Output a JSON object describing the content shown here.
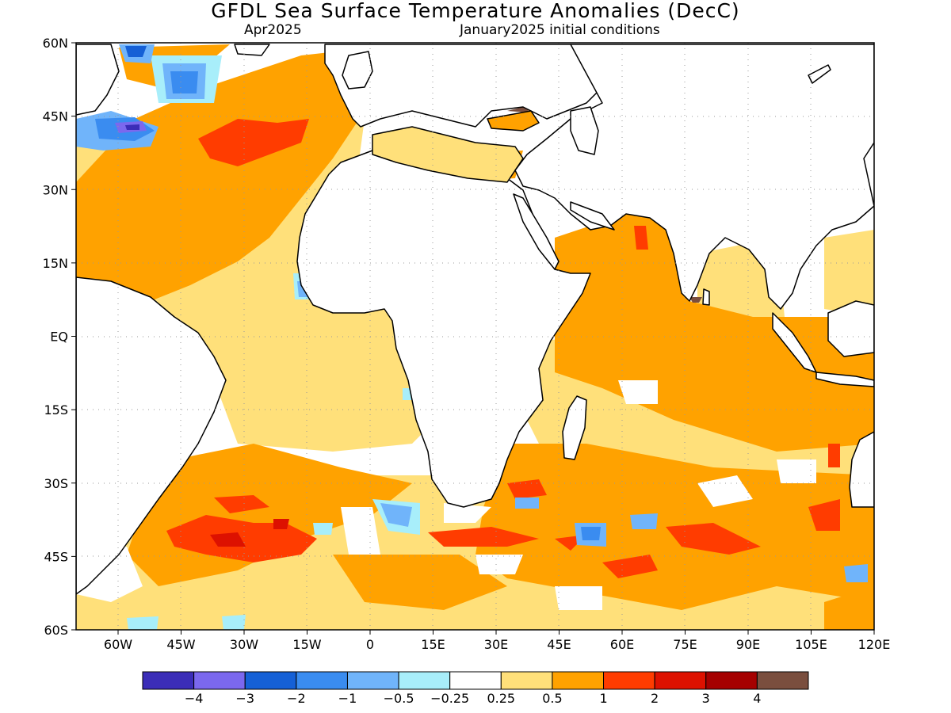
{
  "title": "GFDL Sea Surface Temperature Anomalies (DecC)",
  "subtitle_left": "Apr2025",
  "subtitle_right": "January2025 initial conditions",
  "map": {
    "lon_range": [
      -70,
      120
    ],
    "lat_range": [
      -60,
      60
    ],
    "x_ticks": [
      {
        "lon": -60,
        "label": "60W"
      },
      {
        "lon": -45,
        "label": "45W"
      },
      {
        "lon": -30,
        "label": "30W"
      },
      {
        "lon": -15,
        "label": "15W"
      },
      {
        "lon": 0,
        "label": "0"
      },
      {
        "lon": 15,
        "label": "15E"
      },
      {
        "lon": 30,
        "label": "30E"
      },
      {
        "lon": 45,
        "label": "45E"
      },
      {
        "lon": 60,
        "label": "60E"
      },
      {
        "lon": 75,
        "label": "75E"
      },
      {
        "lon": 90,
        "label": "90E"
      },
      {
        "lon": 105,
        "label": "105E"
      },
      {
        "lon": 120,
        "label": "120E"
      }
    ],
    "y_ticks": [
      {
        "lat": 60,
        "label": "60N"
      },
      {
        "lat": 45,
        "label": "45N"
      },
      {
        "lat": 30,
        "label": "30N"
      },
      {
        "lat": 15,
        "label": "15N"
      },
      {
        "lat": 0,
        "label": "EQ"
      },
      {
        "lat": -15,
        "label": "15S"
      },
      {
        "lat": -30,
        "label": "30S"
      },
      {
        "lat": -45,
        "label": "45S"
      },
      {
        "lat": -60,
        "label": "60S"
      }
    ],
    "gridlines": "dotted",
    "colors": {
      "land": "#ffffff",
      "coast": "#000000",
      "anom_025_05": "#ffe07a",
      "anom_05_1": "#ffa200",
      "anom_1_2": "#ff3c00",
      "anom_neg_025": "#a8eefa",
      "anom_neg_05": "#70b4fa",
      "anom_neg_1": "#3a8cf0",
      "anom_neg_2": "#1560d6",
      "anom_neg_3": "#7b68ee",
      "anom_neg_4": "#3b2db8",
      "anom_4plus": "#7a4e3e"
    }
  },
  "colorbar": {
    "colors": [
      "#3b2db8",
      "#7b68ee",
      "#1560d6",
      "#3a8cf0",
      "#70b4fa",
      "#a8eefa",
      "#ffffff",
      "#ffe07a",
      "#ffa200",
      "#ff3c00",
      "#dd1100",
      "#a50000",
      "#7a4e3e"
    ],
    "labels": [
      "−4",
      "−3",
      "−2",
      "−1",
      "−0.5",
      "−0.25",
      "0.25",
      "0.5",
      "1",
      "2",
      "3",
      "4"
    ]
  }
}
